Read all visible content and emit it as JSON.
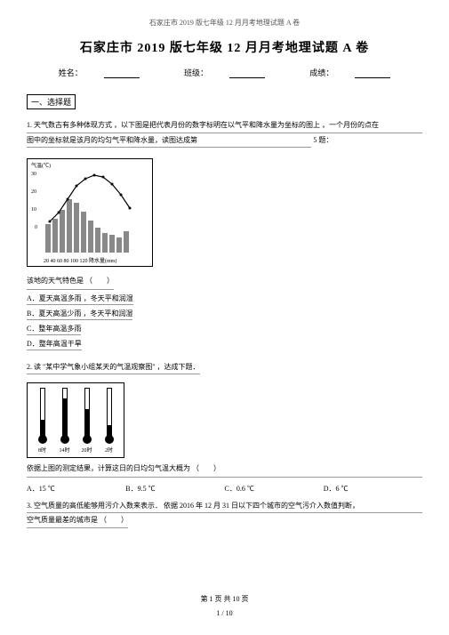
{
  "header_small": "石家庄市 2019 版七年级 12 月月考地理试题 A 卷",
  "title": "石家庄市 2019 版七年级 12 月月考地理试题  A 卷",
  "info": {
    "name": "姓名：",
    "class": "班级：",
    "score": "成绩："
  },
  "section1": "一、选择题",
  "q1": {
    "intro1": "1.  天气数古有多种体现方式  ，以下图是把代表月份的数字标明在以气平和降水量为坐标的图上  ，一个月份的点在",
    "intro2": "图中的坐标就是该月的均匀气平和降水量，读图达成第",
    "intro3": "5 题：",
    "chart_label": "气温(℃)",
    "bars": [
      40,
      48,
      60,
      75,
      70,
      58,
      45,
      35,
      28,
      25,
      22,
      30
    ],
    "line_points": [
      {
        "x": 5,
        "y": 60
      },
      {
        "x": 15,
        "y": 50
      },
      {
        "x": 25,
        "y": 35
      },
      {
        "x": 35,
        "y": 20
      },
      {
        "x": 45,
        "y": 12
      },
      {
        "x": 55,
        "y": 8
      },
      {
        "x": 65,
        "y": 10
      },
      {
        "x": 75,
        "y": 18
      },
      {
        "x": 85,
        "y": 30
      },
      {
        "x": 95,
        "y": 45
      }
    ],
    "y_ticks": [
      "30",
      "20",
      "10",
      "0"
    ],
    "x_ticks": "20 40 60 80 100 120 降水量(mm)",
    "prompt": "该地的天气特色是 （　　）",
    "options": {
      "a": "A．夏天高温多雨 ，冬天平和润湿",
      "b": "B．夏天高温少雨 ，冬天平和润湿",
      "c": "C．整年高温多雨",
      "d": "D．整年高温干旱"
    }
  },
  "q2": {
    "intro": "2.  读 \"某中学气象小组某天的气温观察图\" ，达成下题．",
    "thermos": [
      {
        "label": "8时",
        "fill": 18
      },
      {
        "label": "14时",
        "fill": 42
      },
      {
        "label": "20时",
        "fill": 30
      },
      {
        "label": "2时",
        "fill": 12
      }
    ],
    "prompt": "依据上图的测定结果，计算这日的日均匀气温大概为 （　　）",
    "options": {
      "a": "A．15 ℃",
      "b": "B．9.5 ℃",
      "c": "C．0.6 ℃",
      "d": "D．6 ℃"
    }
  },
  "q3": {
    "line1": "3.  空气质量的高低能够用污介入数来表示．  依据 2016  年 12 月 31 日以下四个城市的空气污介入数值判断，",
    "line2": "空气质量最差的城市是 （　　）"
  },
  "footer": {
    "page": "第 1 页 共 10 页",
    "num": "1 / 10"
  }
}
